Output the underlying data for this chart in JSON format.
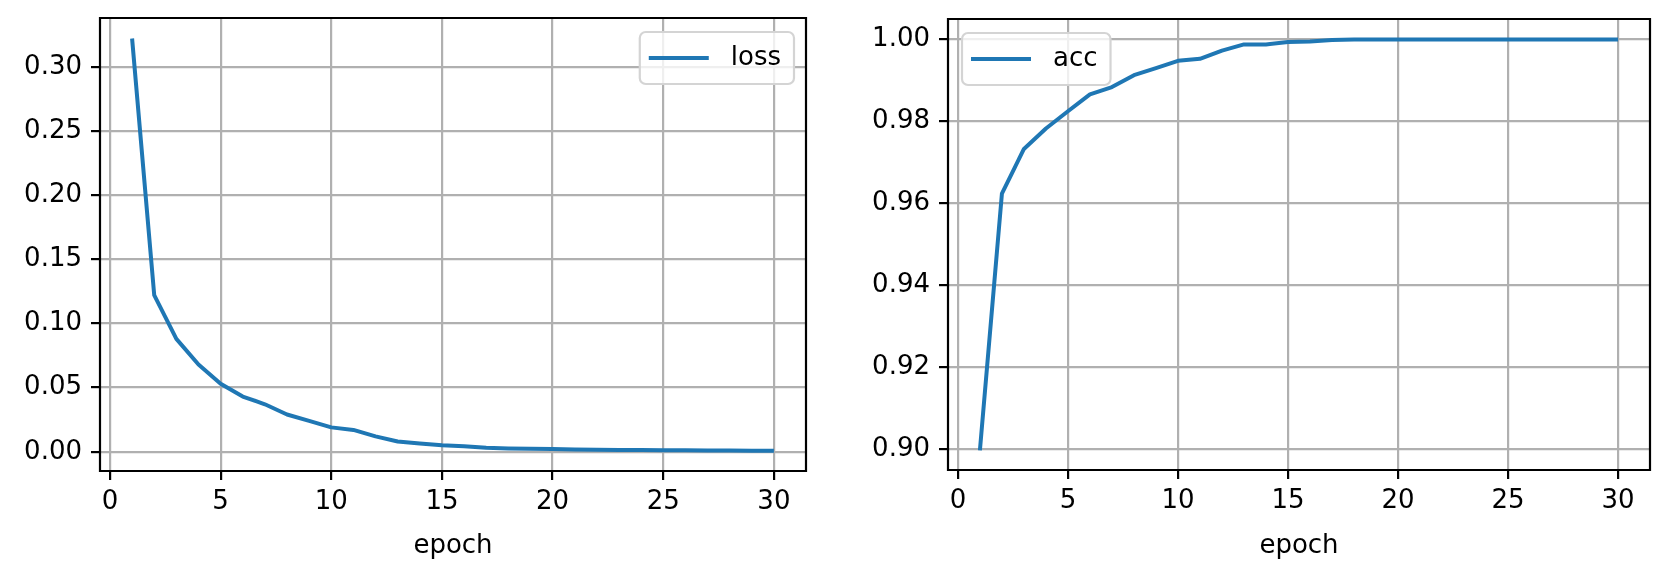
{
  "chart_data": [
    {
      "type": "line",
      "xlabel": "epoch",
      "x": [
        1,
        2,
        3,
        4,
        5,
        6,
        7,
        8,
        9,
        10,
        11,
        12,
        13,
        14,
        15,
        16,
        17,
        18,
        19,
        20,
        21,
        22,
        23,
        24,
        25,
        26,
        27,
        28,
        29,
        30
      ],
      "series": [
        {
          "name": "loss",
          "color": "#1f77b4",
          "values": [
            0.322,
            0.122,
            0.088,
            0.068,
            0.053,
            0.043,
            0.037,
            0.029,
            0.024,
            0.019,
            0.017,
            0.012,
            0.008,
            0.0064,
            0.005,
            0.0043,
            0.0032,
            0.0026,
            0.0023,
            0.0021,
            0.0018,
            0.0016,
            0.0014,
            0.0013,
            0.0012,
            0.0011,
            0.001,
            0.0009,
            0.0008,
            0.0007
          ]
        }
      ],
      "xlim": [
        -0.45,
        31.45
      ],
      "xticks": [
        0,
        5,
        10,
        15,
        20,
        25,
        30
      ],
      "ylim": [
        -0.015,
        0.338
      ],
      "yticks": [
        {
          "value": 0,
          "label": "0.00"
        },
        {
          "value": 0.05,
          "label": "0.05"
        },
        {
          "value": 0.1,
          "label": "0.10"
        },
        {
          "value": 0.15,
          "label": "0.15"
        },
        {
          "value": 0.2,
          "label": "0.20"
        },
        {
          "value": 0.25,
          "label": "0.25"
        },
        {
          "value": 0.3,
          "label": "0.30"
        }
      ],
      "grid": true,
      "legend": "top right",
      "marker": "none"
    },
    {
      "type": "line",
      "xlabel": "epoch",
      "x": [
        1,
        2,
        3,
        4,
        5,
        6,
        7,
        8,
        9,
        10,
        11,
        12,
        13,
        14,
        15,
        16,
        17,
        18,
        19,
        20,
        21,
        22,
        23,
        24,
        25,
        26,
        27,
        28,
        29,
        30
      ],
      "series": [
        {
          "name": "acc",
          "color": "#1f77b4",
          "values": [
            0.8998,
            0.9624,
            0.9733,
            0.9783,
            0.9825,
            0.9866,
            0.9884,
            0.9913,
            0.993,
            0.9948,
            0.9953,
            0.9973,
            0.9988,
            0.9988,
            0.9994,
            0.9995,
            0.9999,
            1.0,
            1.0,
            1.0,
            1.0,
            1.0,
            1.0,
            1.0,
            1.0,
            1.0,
            1.0,
            1.0,
            1.0,
            1.0
          ]
        }
      ],
      "xlim": [
        -0.45,
        31.45
      ],
      "xticks": [
        0,
        5,
        10,
        15,
        20,
        25,
        30
      ],
      "ylim": [
        0.895,
        1.005
      ],
      "yticks": [
        {
          "value": 0.9,
          "label": "0.90"
        },
        {
          "value": 0.92,
          "label": "0.92"
        },
        {
          "value": 0.94,
          "label": "0.94"
        },
        {
          "value": 0.96,
          "label": "0.96"
        },
        {
          "value": 0.98,
          "label": "0.98"
        },
        {
          "value": 1.0,
          "label": "1.00"
        }
      ],
      "grid": true,
      "legend": "top left",
      "marker": "none"
    }
  ]
}
